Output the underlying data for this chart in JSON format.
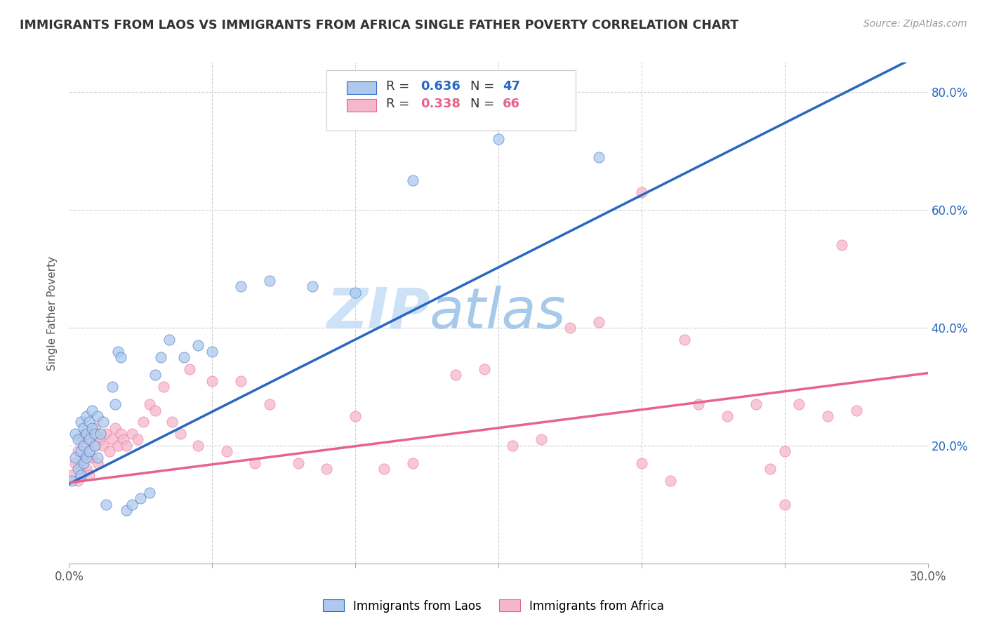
{
  "title": "IMMIGRANTS FROM LAOS VS IMMIGRANTS FROM AFRICA SINGLE FATHER POVERTY CORRELATION CHART",
  "source": "Source: ZipAtlas.com",
  "ylabel_label": "Single Father Poverty",
  "xlim": [
    0.0,
    0.3
  ],
  "ylim": [
    0.0,
    0.85
  ],
  "xticks": [
    0.0,
    0.05,
    0.1,
    0.15,
    0.2,
    0.25,
    0.3
  ],
  "yticks": [
    0.0,
    0.2,
    0.4,
    0.6,
    0.8
  ],
  "laos_R": 0.636,
  "laos_N": 47,
  "africa_R": 0.338,
  "africa_N": 66,
  "laos_color": "#aec9ed",
  "africa_color": "#f5b8cb",
  "laos_line_color": "#2868c0",
  "africa_line_color": "#e8638a",
  "background_color": "#ffffff",
  "grid_color": "#d0d0d0",
  "laos_line_intercept": 0.135,
  "laos_line_slope": 2.45,
  "africa_line_intercept": 0.137,
  "africa_line_slope": 0.62,
  "laos_x": [
    0.001,
    0.002,
    0.002,
    0.003,
    0.003,
    0.004,
    0.004,
    0.004,
    0.005,
    0.005,
    0.005,
    0.006,
    0.006,
    0.006,
    0.007,
    0.007,
    0.007,
    0.008,
    0.008,
    0.009,
    0.009,
    0.01,
    0.01,
    0.011,
    0.012,
    0.013,
    0.015,
    0.016,
    0.017,
    0.018,
    0.02,
    0.022,
    0.025,
    0.028,
    0.03,
    0.032,
    0.035,
    0.04,
    0.045,
    0.05,
    0.06,
    0.07,
    0.085,
    0.1,
    0.12,
    0.15,
    0.185
  ],
  "laos_y": [
    0.14,
    0.18,
    0.22,
    0.16,
    0.21,
    0.19,
    0.24,
    0.15,
    0.2,
    0.17,
    0.23,
    0.18,
    0.25,
    0.22,
    0.21,
    0.24,
    0.19,
    0.23,
    0.26,
    0.2,
    0.22,
    0.18,
    0.25,
    0.22,
    0.24,
    0.1,
    0.3,
    0.27,
    0.36,
    0.35,
    0.09,
    0.1,
    0.11,
    0.12,
    0.32,
    0.35,
    0.38,
    0.35,
    0.37,
    0.36,
    0.47,
    0.48,
    0.47,
    0.46,
    0.65,
    0.72,
    0.69
  ],
  "africa_x": [
    0.001,
    0.002,
    0.003,
    0.003,
    0.004,
    0.004,
    0.005,
    0.005,
    0.006,
    0.006,
    0.007,
    0.007,
    0.008,
    0.009,
    0.009,
    0.01,
    0.011,
    0.012,
    0.013,
    0.014,
    0.015,
    0.016,
    0.017,
    0.018,
    0.019,
    0.02,
    0.022,
    0.024,
    0.026,
    0.028,
    0.03,
    0.033,
    0.036,
    0.039,
    0.042,
    0.045,
    0.05,
    0.055,
    0.06,
    0.065,
    0.07,
    0.08,
    0.09,
    0.1,
    0.11,
    0.12,
    0.135,
    0.145,
    0.155,
    0.165,
    0.175,
    0.185,
    0.2,
    0.21,
    0.22,
    0.23,
    0.24,
    0.25,
    0.255,
    0.265,
    0.27,
    0.275,
    0.25,
    0.245,
    0.2,
    0.215
  ],
  "africa_y": [
    0.15,
    0.17,
    0.19,
    0.14,
    0.16,
    0.21,
    0.18,
    0.22,
    0.16,
    0.19,
    0.21,
    0.15,
    0.18,
    0.2,
    0.23,
    0.17,
    0.21,
    0.2,
    0.22,
    0.19,
    0.21,
    0.23,
    0.2,
    0.22,
    0.21,
    0.2,
    0.22,
    0.21,
    0.24,
    0.27,
    0.26,
    0.3,
    0.24,
    0.22,
    0.33,
    0.2,
    0.31,
    0.19,
    0.31,
    0.17,
    0.27,
    0.17,
    0.16,
    0.25,
    0.16,
    0.17,
    0.32,
    0.33,
    0.2,
    0.21,
    0.4,
    0.41,
    0.17,
    0.14,
    0.27,
    0.25,
    0.27,
    0.1,
    0.27,
    0.25,
    0.54,
    0.26,
    0.19,
    0.16,
    0.63,
    0.38
  ]
}
